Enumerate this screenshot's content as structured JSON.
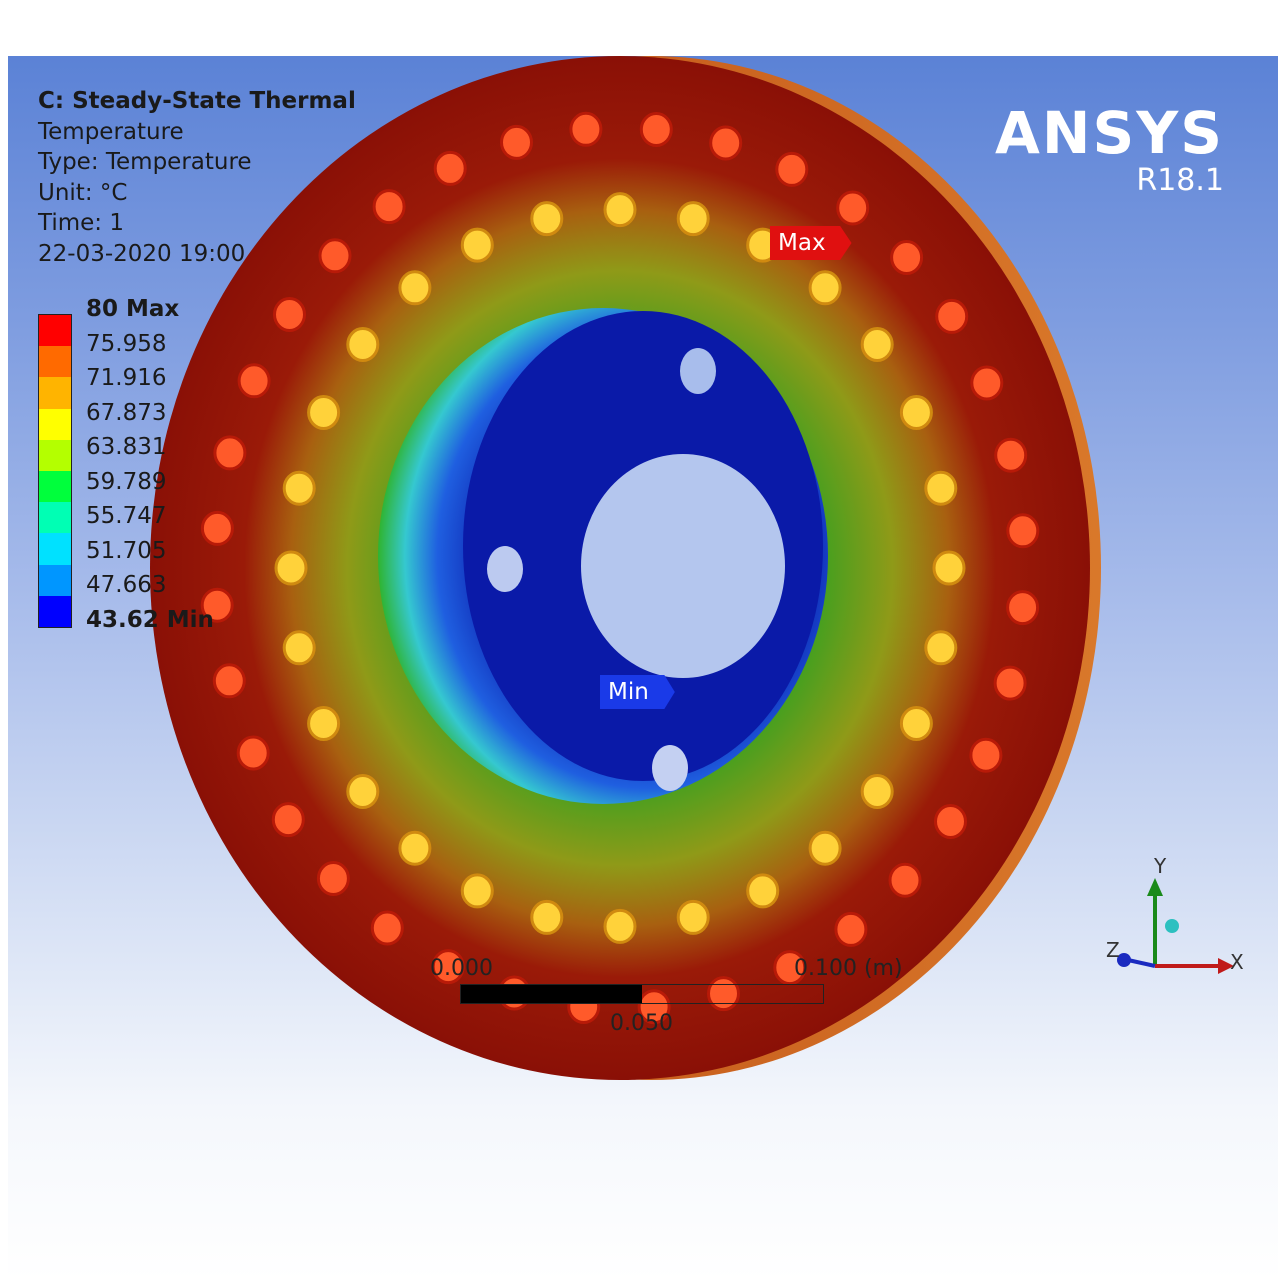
{
  "header": {
    "analysis": "C: Steady-State Thermal",
    "result": "Temperature",
    "type": "Type: Temperature",
    "unit": "Unit: °C",
    "time": "Time: 1",
    "timestamp": "22-03-2020 19:00"
  },
  "legend": {
    "labels": [
      "80 Max",
      "75.958",
      "71.916",
      "67.873",
      "63.831",
      "59.789",
      "55.747",
      "51.705",
      "47.663",
      "43.62 Min"
    ],
    "colors": [
      "#ff0000",
      "#ff6a00",
      "#ffb400",
      "#ffff00",
      "#b4ff00",
      "#00ff3c",
      "#00ffb4",
      "#00e1ff",
      "#0096ff",
      "#0000ff"
    ]
  },
  "brand": {
    "name": "ANSYS",
    "version": "R18.1"
  },
  "probes": {
    "max": "Max",
    "min": "Min"
  },
  "scale": {
    "left": "0.000",
    "right": "0.100 (m)",
    "middle": "0.050"
  },
  "triad": {
    "x": "X",
    "y": "Y",
    "z": "Z"
  },
  "colors": {
    "hot": "#b0100a",
    "warm": "#c8a020",
    "cool": "#2fb430",
    "cold": "#0a1aa8"
  }
}
